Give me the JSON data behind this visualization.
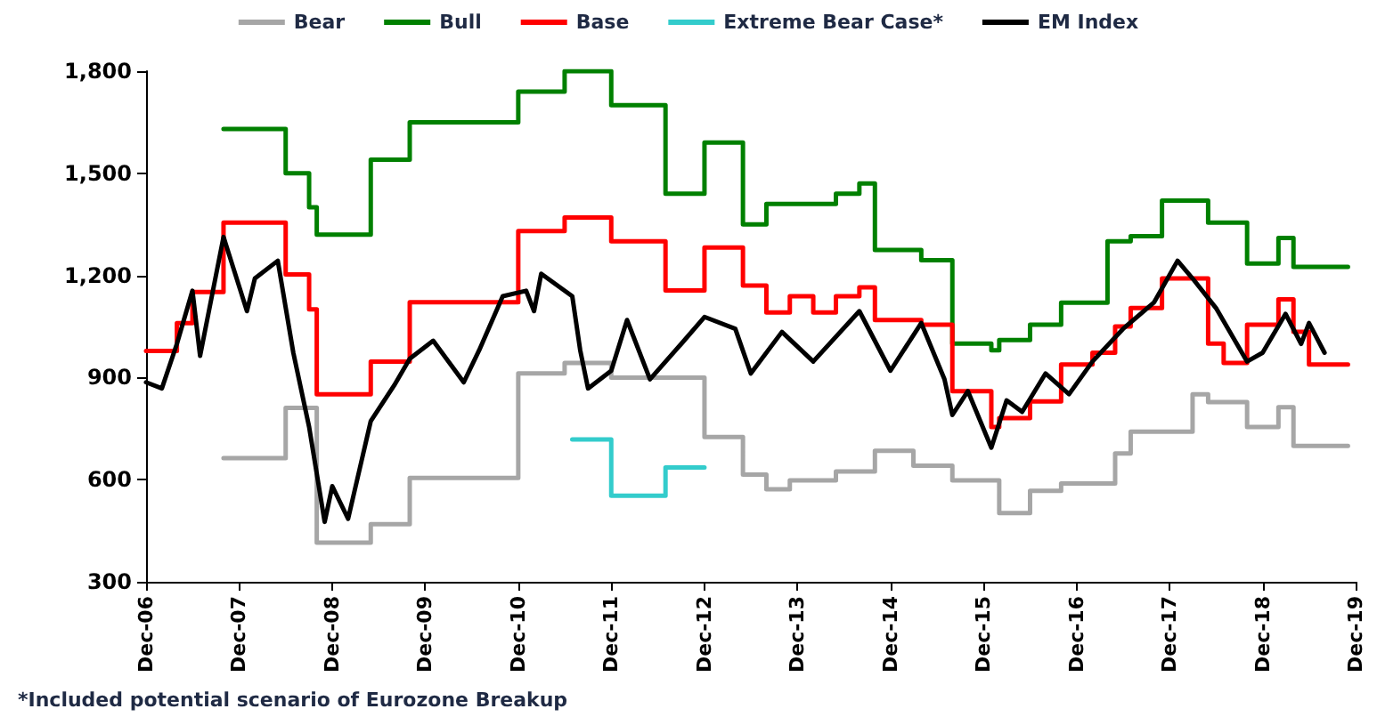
{
  "chart_data": {
    "type": "step",
    "xlim": [
      "2006-12",
      "2019-12"
    ],
    "xticks": [
      {
        "value": "2006-12",
        "label": "Dec-06"
      },
      {
        "value": "2007-12",
        "label": "Dec-07"
      },
      {
        "value": "2008-12",
        "label": "Dec-08"
      },
      {
        "value": "2009-12",
        "label": "Dec-09"
      },
      {
        "value": "2010-12",
        "label": "Dec-10"
      },
      {
        "value": "2011-12",
        "label": "Dec-11"
      },
      {
        "value": "2012-12",
        "label": "Dec-12"
      },
      {
        "value": "2013-12",
        "label": "Dec-13"
      },
      {
        "value": "2014-12",
        "label": "Dec-14"
      },
      {
        "value": "2015-12",
        "label": "Dec-15"
      },
      {
        "value": "2016-12",
        "label": "Dec-16"
      },
      {
        "value": "2017-12",
        "label": "Dec-17"
      },
      {
        "value": "2018-12",
        "label": "Dec-18"
      },
      {
        "value": "2019-12",
        "label": "Dec-19"
      }
    ],
    "ylim": [
      300,
      1800
    ],
    "yticks": [
      300,
      600,
      900,
      {
        "value": 1200,
        "label": "1,200"
      },
      {
        "value": 1500,
        "label": "1,500"
      },
      {
        "value": 1800,
        "label": "1,800"
      }
    ],
    "grid": false,
    "legend": "top",
    "marker": "none",
    "annotations": [
      "*Included potential scenario of Eurozone Breakup"
    ],
    "series": [
      {
        "name": "Bear",
        "color": "#a6a6a6",
        "x": [
          "2007-10",
          "2008-06",
          "2008-10",
          "2009-05",
          "2009-10",
          "2010-12",
          "2011-06",
          "2011-12",
          "2012-12",
          "2013-05",
          "2013-08",
          "2013-11",
          "2014-05",
          "2014-10",
          "2015-03",
          "2015-08",
          "2016-02",
          "2016-06",
          "2016-10",
          "2017-05",
          "2017-07",
          "2018-03",
          "2018-05",
          "2018-10",
          "2019-02",
          "2019-04",
          "2019-11"
        ],
        "values": [
          663,
          811,
          415,
          469,
          605,
          912,
          943,
          900,
          725,
          615,
          572,
          598,
          624,
          685,
          641,
          598,
          502,
          567,
          589,
          677,
          741,
          851,
          828,
          755,
          813,
          699,
          699
        ]
      },
      {
        "name": "Bull",
        "color": "#008000",
        "x": [
          "2007-10",
          "2008-06",
          "2008-09",
          "2008-10",
          "2009-05",
          "2009-10",
          "2010-12",
          "2011-06",
          "2011-12",
          "2012-07",
          "2012-12",
          "2013-05",
          "2013-08",
          "2014-05",
          "2014-08",
          "2014-10",
          "2015-04",
          "2015-08",
          "2016-01",
          "2016-02",
          "2016-06",
          "2016-10",
          "2017-04",
          "2017-07",
          "2017-11",
          "2018-05",
          "2018-10",
          "2019-02",
          "2019-04",
          "2019-11"
        ],
        "values": [
          1630,
          1500,
          1400,
          1320,
          1540,
          1650,
          1740,
          1800,
          1700,
          1440,
          1590,
          1350,
          1410,
          1440,
          1470,
          1275,
          1245,
          1000,
          980,
          1010,
          1055,
          1120,
          1300,
          1315,
          1420,
          1355,
          1235,
          1310,
          1225,
          1225
        ]
      },
      {
        "name": "Base",
        "color": "#ff0000",
        "x": [
          "2006-12",
          "2007-04",
          "2007-06",
          "2007-10",
          "2008-06",
          "2008-09",
          "2008-10",
          "2009-05",
          "2009-10",
          "2010-12",
          "2011-06",
          "2011-12",
          "2012-07",
          "2012-12",
          "2013-05",
          "2013-08",
          "2013-11",
          "2014-02",
          "2014-05",
          "2014-08",
          "2014-10",
          "2015-04",
          "2015-08",
          "2016-01",
          "2016-02",
          "2016-06",
          "2016-10",
          "2017-02",
          "2017-05",
          "2017-07",
          "2017-11",
          "2018-05",
          "2018-07",
          "2018-10",
          "2019-02",
          "2019-04",
          "2019-06",
          "2019-11"
        ],
        "values": [
          978,
          1060,
          1151,
          1355,
          1203,
          1100,
          851,
          947,
          1121,
          1330,
          1370,
          1300,
          1156,
          1282,
          1170,
          1091,
          1139,
          1091,
          1139,
          1165,
          1069,
          1055,
          860,
          755,
          781,
          830,
          938,
          973,
          1050,
          1104,
          1191,
          1000,
          943,
          1055,
          1130,
          1034,
          938,
          938
        ]
      },
      {
        "name": "Extreme Bear Case*",
        "color": "#33cccc",
        "x": [
          "2011-07",
          "2011-12",
          "2012-07",
          "2012-12"
        ],
        "values": [
          718,
          553,
          636,
          636
        ]
      },
      {
        "name": "EM Index",
        "type": "line",
        "color": "#000000",
        "x": [
          "2006-12",
          "2007-02",
          "2007-04",
          "2007-06",
          "2007-07",
          "2007-10",
          "2008-01",
          "2008-02",
          "2008-05",
          "2008-07",
          "2008-09",
          "2008-11",
          "2008-12",
          "2009-02",
          "2009-05",
          "2009-08",
          "2009-10",
          "2010-01",
          "2010-05",
          "2010-07",
          "2010-10",
          "2011-01",
          "2011-02",
          "2011-03",
          "2011-07",
          "2011-08",
          "2011-09",
          "2011-12",
          "2012-02",
          "2012-05",
          "2012-09",
          "2012-12",
          "2013-04",
          "2013-06",
          "2013-10",
          "2014-02",
          "2014-08",
          "2014-12",
          "2015-04",
          "2015-07",
          "2015-08",
          "2015-10",
          "2016-01",
          "2016-03",
          "2016-05",
          "2016-08",
          "2016-11",
          "2017-02",
          "2017-06",
          "2017-10",
          "2018-01",
          "2018-03",
          "2018-06",
          "2018-10",
          "2018-12",
          "2019-03",
          "2019-05",
          "2019-06",
          "2019-08"
        ],
        "values": [
          886,
          868,
          999,
          1155,
          964,
          1313,
          1095,
          1191,
          1243,
          973,
          755,
          476,
          581,
          485,
          772,
          877,
          955,
          1008,
          886,
          981,
          1139,
          1155,
          1095,
          1205,
          1139,
          981,
          868,
          920,
          1069,
          895,
          999,
          1078,
          1043,
          912,
          1034,
          947,
          1095,
          920,
          1060,
          895,
          790,
          860,
          694,
          833,
          799,
          912,
          851,
          947,
          1043,
          1121,
          1243,
          1191,
          1104,
          947,
          973,
          1087,
          999,
          1060,
          973
        ]
      }
    ]
  }
}
